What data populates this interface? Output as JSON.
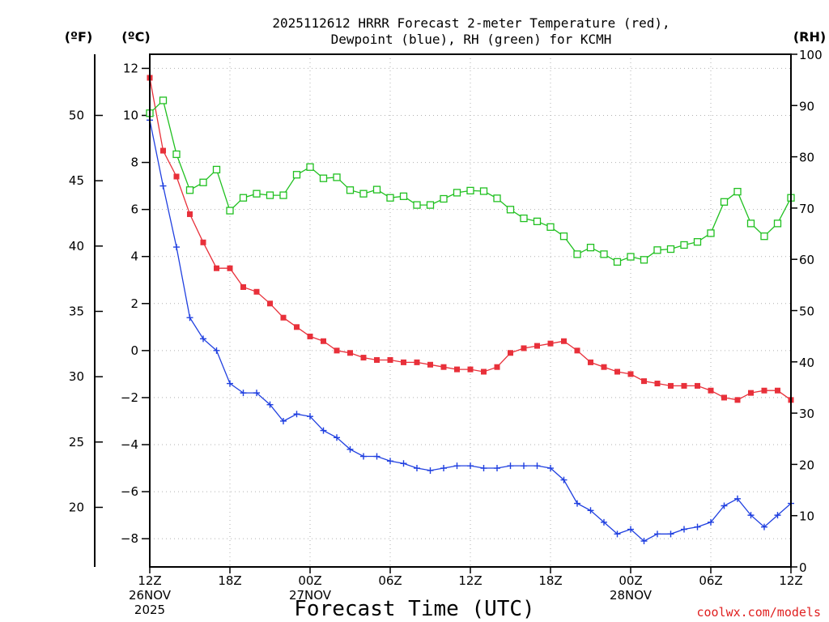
{
  "chart_data": {
    "type": "line",
    "title_line1": "2025112612 HRRR Forecast 2-meter Temperature (red),",
    "title_line2": "Dewpoint (blue), RH (green) for KCMH",
    "xlabel": "Forecast Time (UTC)",
    "credit": "coolwx.com/models",
    "unit_f": "(ºF)",
    "unit_c": "(ºC)",
    "unit_rh": "(RH)",
    "x_range": [
      0,
      48
    ],
    "x_ticks": [
      {
        "x": 0,
        "label": "12Z",
        "line2": "26NOV",
        "line3": "2025"
      },
      {
        "x": 6,
        "label": "18Z",
        "line2": "",
        "line3": ""
      },
      {
        "x": 12,
        "label": "00Z",
        "line2": "27NOV",
        "line3": ""
      },
      {
        "x": 18,
        "label": "06Z",
        "line2": "",
        "line3": ""
      },
      {
        "x": 24,
        "label": "12Z",
        "line2": "",
        "line3": ""
      },
      {
        "x": 30,
        "label": "18Z",
        "line2": "",
        "line3": ""
      },
      {
        "x": 36,
        "label": "00Z",
        "line2": "28NOV",
        "line3": ""
      },
      {
        "x": 42,
        "label": "06Z",
        "line2": "",
        "line3": ""
      },
      {
        "x": 48,
        "label": "12Z",
        "line2": "",
        "line3": ""
      }
    ],
    "c_range": [
      -9.2,
      12.6
    ],
    "c_ticks": [
      12,
      10,
      8,
      6,
      4,
      2,
      0,
      -2,
      -4,
      -6,
      -8
    ],
    "c_tick_labels": [
      "12",
      "10",
      "8",
      "6",
      "4",
      "2",
      "0",
      "−2",
      "−4",
      "−6",
      "−8"
    ],
    "f_ticks": [
      50,
      45,
      40,
      35,
      30,
      25,
      20
    ],
    "f_tick_labels": [
      "50",
      "45",
      "40",
      "35",
      "30",
      "25",
      "20"
    ],
    "rh_range": [
      0,
      100
    ],
    "rh_ticks": [
      100,
      90,
      80,
      70,
      60,
      50,
      40,
      30,
      20,
      10,
      0
    ],
    "rh_tick_labels": [
      "100",
      "90",
      "80",
      "70",
      "60",
      "50",
      "40",
      "30",
      "20",
      "10",
      "0"
    ],
    "series": [
      {
        "name": "Temperature",
        "axis": "c",
        "color": "#e8303a",
        "marker": "filled-square",
        "values": [
          11.6,
          8.5,
          7.4,
          5.8,
          4.6,
          3.5,
          3.5,
          2.7,
          2.5,
          2.0,
          1.4,
          1.0,
          0.6,
          0.4,
          0.0,
          -0.1,
          -0.3,
          -0.4,
          -0.4,
          -0.5,
          -0.5,
          -0.6,
          -0.7,
          -0.8,
          -0.8,
          -0.9,
          -0.7,
          -0.1,
          0.1,
          0.2,
          0.3,
          0.4,
          0.0,
          -0.5,
          -0.7,
          -0.9,
          -1.0,
          -1.3,
          -1.4,
          -1.5,
          -1.5,
          -1.5,
          -1.7,
          -2.0,
          -2.1,
          -1.8,
          -1.7,
          -1.7,
          -2.1
        ]
      },
      {
        "name": "Dewpoint",
        "axis": "c",
        "color": "#2040e0",
        "marker": "plus",
        "values": [
          9.8,
          7.0,
          4.4,
          1.4,
          0.5,
          0.0,
          -1.4,
          -1.8,
          -1.8,
          -2.3,
          -3.0,
          -2.7,
          -2.8,
          -3.4,
          -3.7,
          -4.2,
          -4.5,
          -4.5,
          -4.7,
          -4.8,
          -5.0,
          -5.1,
          -5.0,
          -4.9,
          -4.9,
          -5.0,
          -5.0,
          -4.9,
          -4.9,
          -4.9,
          -5.0,
          -5.5,
          -6.5,
          -6.8,
          -7.3,
          -7.8,
          -7.6,
          -8.1,
          -7.8,
          -7.8,
          -7.6,
          -7.5,
          -7.3,
          -6.6,
          -6.3,
          -7.0,
          -7.5,
          -7.0,
          -6.5
        ]
      },
      {
        "name": "RH",
        "axis": "rh",
        "color": "#20c020",
        "marker": "open-square",
        "values": [
          88.5,
          91,
          80.5,
          73.5,
          75,
          77.5,
          69.5,
          72,
          72.8,
          72.5,
          72.5,
          76.5,
          78,
          75.8,
          76,
          73.5,
          72.8,
          73.6,
          72,
          72.3,
          70.6,
          70.6,
          71.8,
          73,
          73.4,
          73.3,
          71.9,
          69.7,
          68,
          67.4,
          66.3,
          64.5,
          61,
          62.3,
          61,
          59.5,
          60.5,
          59.9,
          61.8,
          62,
          62.8,
          63.4,
          65.1,
          71.2,
          73.2,
          67,
          64.5,
          67,
          72
        ]
      }
    ]
  }
}
